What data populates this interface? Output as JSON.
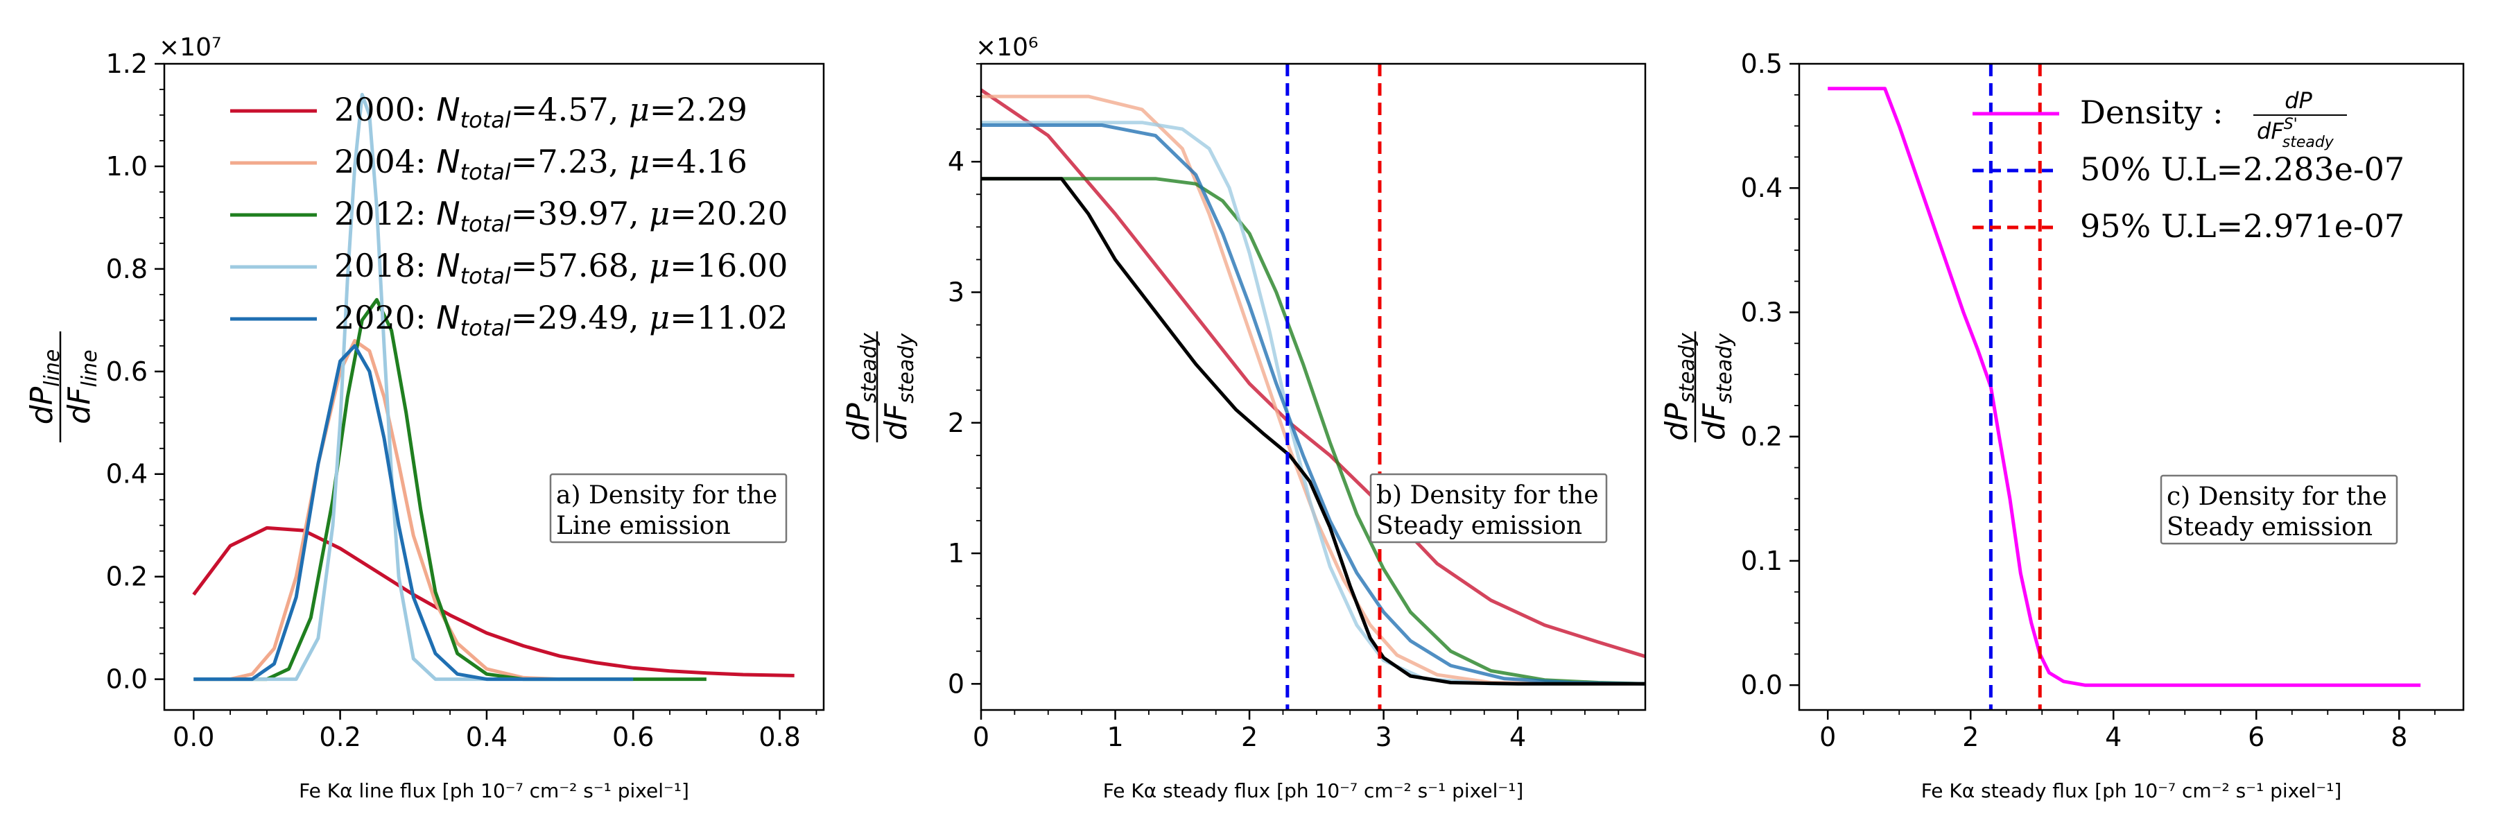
{
  "figure": {
    "colors": {
      "y2000": "#c8102e",
      "y2004": "#f2a98c",
      "y2012": "#1f7f1f",
      "y2018": "#9ecae1",
      "y2020": "#1f6fb2",
      "total": "#000000",
      "density": "#ff00ff",
      "ul50": "#0000ee",
      "ul95": "#ee0000"
    }
  },
  "chart_data": [
    {
      "type": "line",
      "panel": "a",
      "xlabel": "Fe Kα line flux [ph 10⁻⁷ cm⁻² s⁻¹ pixel⁻¹]",
      "ylabel_num": "dP",
      "ylabel_num_sub": "line",
      "ylabel_den": "dF",
      "ylabel_den_sub": "line",
      "y_exponent": "×10⁷",
      "xlim": [
        -0.04,
        0.86
      ],
      "ylim": [
        -0.06,
        1.2
      ],
      "xticks": [
        0.0,
        0.2,
        0.4,
        0.6,
        0.8
      ],
      "xtick_labels": [
        "0.0",
        "0.2",
        "0.4",
        "0.6",
        "0.8"
      ],
      "yticks": [
        0.0,
        0.2,
        0.4,
        0.6,
        0.8,
        1.0,
        1.2
      ],
      "ytick_labels": [
        "0.0",
        "0.2",
        "0.4",
        "0.6",
        "0.8",
        "1.0",
        "1.2"
      ],
      "annotation": [
        "a) Density for the",
        "Line emission"
      ],
      "legend_position": "upper-left",
      "series": [
        {
          "year": "2000",
          "color_key": "y2000",
          "ntotal": "4.57",
          "mu": "2.29",
          "x": [
            0.0,
            0.05,
            0.1,
            0.15,
            0.2,
            0.25,
            0.3,
            0.35,
            0.4,
            0.45,
            0.5,
            0.55,
            0.6,
            0.65,
            0.7,
            0.75,
            0.82
          ],
          "y": [
            0.165,
            0.26,
            0.295,
            0.29,
            0.255,
            0.21,
            0.165,
            0.125,
            0.09,
            0.065,
            0.045,
            0.032,
            0.022,
            0.016,
            0.012,
            0.009,
            0.007
          ]
        },
        {
          "year": "2004",
          "color_key": "y2004",
          "ntotal": "7.23",
          "mu": "4.16",
          "x": [
            0.0,
            0.05,
            0.08,
            0.11,
            0.14,
            0.17,
            0.2,
            0.22,
            0.24,
            0.26,
            0.28,
            0.3,
            0.33,
            0.36,
            0.4,
            0.45,
            0.5
          ],
          "y": [
            0.0,
            0.0,
            0.01,
            0.06,
            0.2,
            0.42,
            0.6,
            0.66,
            0.64,
            0.55,
            0.42,
            0.28,
            0.15,
            0.07,
            0.02,
            0.003,
            0.0
          ]
        },
        {
          "year": "2012",
          "color_key": "y2012",
          "ntotal": "39.97",
          "mu": "20.20",
          "x": [
            0.0,
            0.1,
            0.13,
            0.16,
            0.19,
            0.21,
            0.23,
            0.25,
            0.27,
            0.29,
            0.31,
            0.33,
            0.36,
            0.4,
            0.45,
            0.5,
            0.6,
            0.7
          ],
          "y": [
            0.0,
            0.0,
            0.02,
            0.12,
            0.35,
            0.55,
            0.7,
            0.74,
            0.68,
            0.52,
            0.33,
            0.17,
            0.05,
            0.01,
            0.0,
            0.0,
            0.0,
            0.0
          ]
        },
        {
          "year": "2018",
          "color_key": "y2018",
          "ntotal": "57.68",
          "mu": "16.00",
          "x": [
            0.0,
            0.14,
            0.17,
            0.19,
            0.2,
            0.21,
            0.22,
            0.23,
            0.24,
            0.25,
            0.26,
            0.27,
            0.28,
            0.3,
            0.33,
            0.4,
            0.5
          ],
          "y": [
            0.0,
            0.0,
            0.08,
            0.3,
            0.5,
            0.78,
            1.0,
            1.14,
            1.1,
            0.92,
            0.65,
            0.4,
            0.2,
            0.04,
            0.0,
            0.0,
            0.0
          ]
        },
        {
          "year": "2020",
          "color_key": "y2020",
          "ntotal": "29.49",
          "mu": "11.02",
          "x": [
            0.0,
            0.08,
            0.11,
            0.14,
            0.17,
            0.2,
            0.22,
            0.24,
            0.26,
            0.28,
            0.3,
            0.33,
            0.36,
            0.4,
            0.5,
            0.6
          ],
          "y": [
            0.0,
            0.0,
            0.03,
            0.16,
            0.42,
            0.62,
            0.65,
            0.6,
            0.47,
            0.3,
            0.16,
            0.05,
            0.01,
            0.0,
            0.0,
            0.0
          ]
        }
      ]
    },
    {
      "type": "line",
      "panel": "b",
      "xlabel": "Fe Kα steady flux [ph 10⁻⁷ cm⁻² s⁻¹ pixel⁻¹]",
      "ylabel_num": "dP",
      "ylabel_num_sub": "steady",
      "ylabel_den": "dF",
      "ylabel_den_sub": "steady",
      "y_exponent": "×10⁶",
      "xlim": [
        0.0,
        4.95
      ],
      "ylim": [
        -0.2,
        4.75
      ],
      "xticks": [
        0,
        1,
        2,
        3,
        4
      ],
      "xtick_labels": [
        "0",
        "1",
        "2",
        "3",
        "4"
      ],
      "yticks": [
        0,
        1,
        2,
        3,
        4
      ],
      "ytick_labels": [
        "0",
        "1",
        "2",
        "3",
        "4"
      ],
      "annotation": [
        "b) Density for the",
        "Steady emission"
      ],
      "vlines": [
        {
          "x": 2.283,
          "color_key": "ul50"
        },
        {
          "x": 2.971,
          "color_key": "ul95"
        }
      ],
      "series": [
        {
          "year": "2000",
          "color_key": "y2000",
          "x": [
            0.0,
            0.5,
            1.0,
            1.5,
            2.0,
            2.3,
            2.6,
            3.0,
            3.4,
            3.8,
            4.2,
            4.6,
            4.95
          ],
          "y": [
            4.55,
            4.2,
            3.6,
            2.95,
            2.3,
            2.0,
            1.75,
            1.35,
            0.92,
            0.64,
            0.45,
            0.32,
            0.21
          ]
        },
        {
          "year": "2004",
          "color_key": "y2004",
          "x": [
            0.0,
            0.8,
            1.2,
            1.5,
            1.7,
            1.9,
            2.1,
            2.3,
            2.5,
            2.7,
            2.9,
            3.1,
            3.4,
            3.8,
            4.3,
            4.95
          ],
          "y": [
            4.5,
            4.5,
            4.4,
            4.1,
            3.6,
            3.0,
            2.4,
            1.8,
            1.25,
            0.8,
            0.45,
            0.22,
            0.07,
            0.01,
            0.0,
            0.0
          ]
        },
        {
          "year": "2012",
          "color_key": "y2012",
          "x": [
            0.0,
            1.3,
            1.6,
            1.8,
            2.0,
            2.2,
            2.4,
            2.6,
            2.8,
            3.0,
            3.2,
            3.5,
            3.8,
            4.2,
            4.6,
            4.95
          ],
          "y": [
            3.87,
            3.87,
            3.83,
            3.7,
            3.45,
            3.0,
            2.45,
            1.85,
            1.3,
            0.88,
            0.55,
            0.25,
            0.1,
            0.03,
            0.01,
            0.0
          ]
        },
        {
          "year": "2018",
          "color_key": "y2018",
          "x": [
            0.0,
            1.2,
            1.5,
            1.7,
            1.85,
            2.0,
            2.15,
            2.3,
            2.45,
            2.6,
            2.8,
            3.0,
            3.3,
            3.8,
            4.95
          ],
          "y": [
            4.3,
            4.3,
            4.25,
            4.1,
            3.8,
            3.3,
            2.7,
            2.0,
            1.4,
            0.9,
            0.45,
            0.18,
            0.04,
            0.0,
            0.0
          ]
        },
        {
          "year": "2020",
          "color_key": "y2020",
          "x": [
            0.0,
            0.9,
            1.3,
            1.6,
            1.8,
            2.0,
            2.2,
            2.4,
            2.6,
            2.8,
            3.0,
            3.2,
            3.5,
            3.9,
            4.4,
            4.95
          ],
          "y": [
            4.28,
            4.28,
            4.2,
            3.9,
            3.45,
            2.9,
            2.3,
            1.75,
            1.25,
            0.85,
            0.55,
            0.33,
            0.14,
            0.04,
            0.01,
            0.0
          ]
        },
        {
          "year": "total",
          "color_key": "total",
          "x": [
            0.0,
            0.6,
            0.8,
            1.0,
            1.3,
            1.6,
            1.9,
            2.1,
            2.3,
            2.45,
            2.6,
            2.75,
            2.9,
            3.0,
            3.2,
            3.5,
            4.0,
            4.95
          ],
          "y": [
            3.87,
            3.87,
            3.6,
            3.25,
            2.85,
            2.45,
            2.1,
            1.92,
            1.75,
            1.55,
            1.2,
            0.75,
            0.35,
            0.2,
            0.06,
            0.01,
            0.0,
            0.0
          ]
        }
      ]
    },
    {
      "type": "line",
      "panel": "c",
      "xlabel": "Fe Kα steady flux [ph 10⁻⁷ cm⁻² s⁻¹ pixel⁻¹]",
      "ylabel_num": "dP",
      "ylabel_num_sub": "steady",
      "ylabel_den": "dF",
      "ylabel_den_sub": "steady",
      "xlim": [
        -0.4,
        8.9
      ],
      "ylim": [
        -0.02,
        0.5
      ],
      "xticks": [
        0,
        2,
        4,
        6,
        8
      ],
      "xtick_labels": [
        "0",
        "2",
        "4",
        "6",
        "8"
      ],
      "yticks": [
        0.0,
        0.1,
        0.2,
        0.3,
        0.4,
        0.5
      ],
      "ytick_labels": [
        "0.0",
        "0.1",
        "0.2",
        "0.3",
        "0.4",
        "0.5"
      ],
      "annotation": [
        "c) Density for the",
        "Steady emission"
      ],
      "vlines": [
        {
          "x": 2.283,
          "color_key": "ul50"
        },
        {
          "x": 2.971,
          "color_key": "ul95"
        }
      ],
      "legend": [
        {
          "kind": "solid",
          "color_key": "density",
          "label": "Density : ",
          "frac_num": "dP",
          "frac_den": "dF",
          "frac_den_sup": "S'",
          "frac_den_sub": "steady"
        },
        {
          "kind": "dashed",
          "color_key": "ul50",
          "label": "50% U.L=2.283e-07"
        },
        {
          "kind": "dashed",
          "color_key": "ul95",
          "label": "95% U.L=2.971e-07"
        }
      ],
      "series": [
        {
          "name": "Density",
          "color_key": "density",
          "x": [
            0.0,
            0.8,
            1.0,
            1.3,
            1.6,
            1.9,
            2.1,
            2.283,
            2.4,
            2.55,
            2.7,
            2.85,
            2.97,
            3.1,
            3.3,
            3.6,
            4.0,
            8.3
          ],
          "y": [
            0.48,
            0.48,
            0.45,
            0.4,
            0.35,
            0.3,
            0.27,
            0.24,
            0.2,
            0.15,
            0.09,
            0.05,
            0.025,
            0.01,
            0.003,
            0.0,
            0.0,
            0.0
          ]
        }
      ]
    }
  ]
}
